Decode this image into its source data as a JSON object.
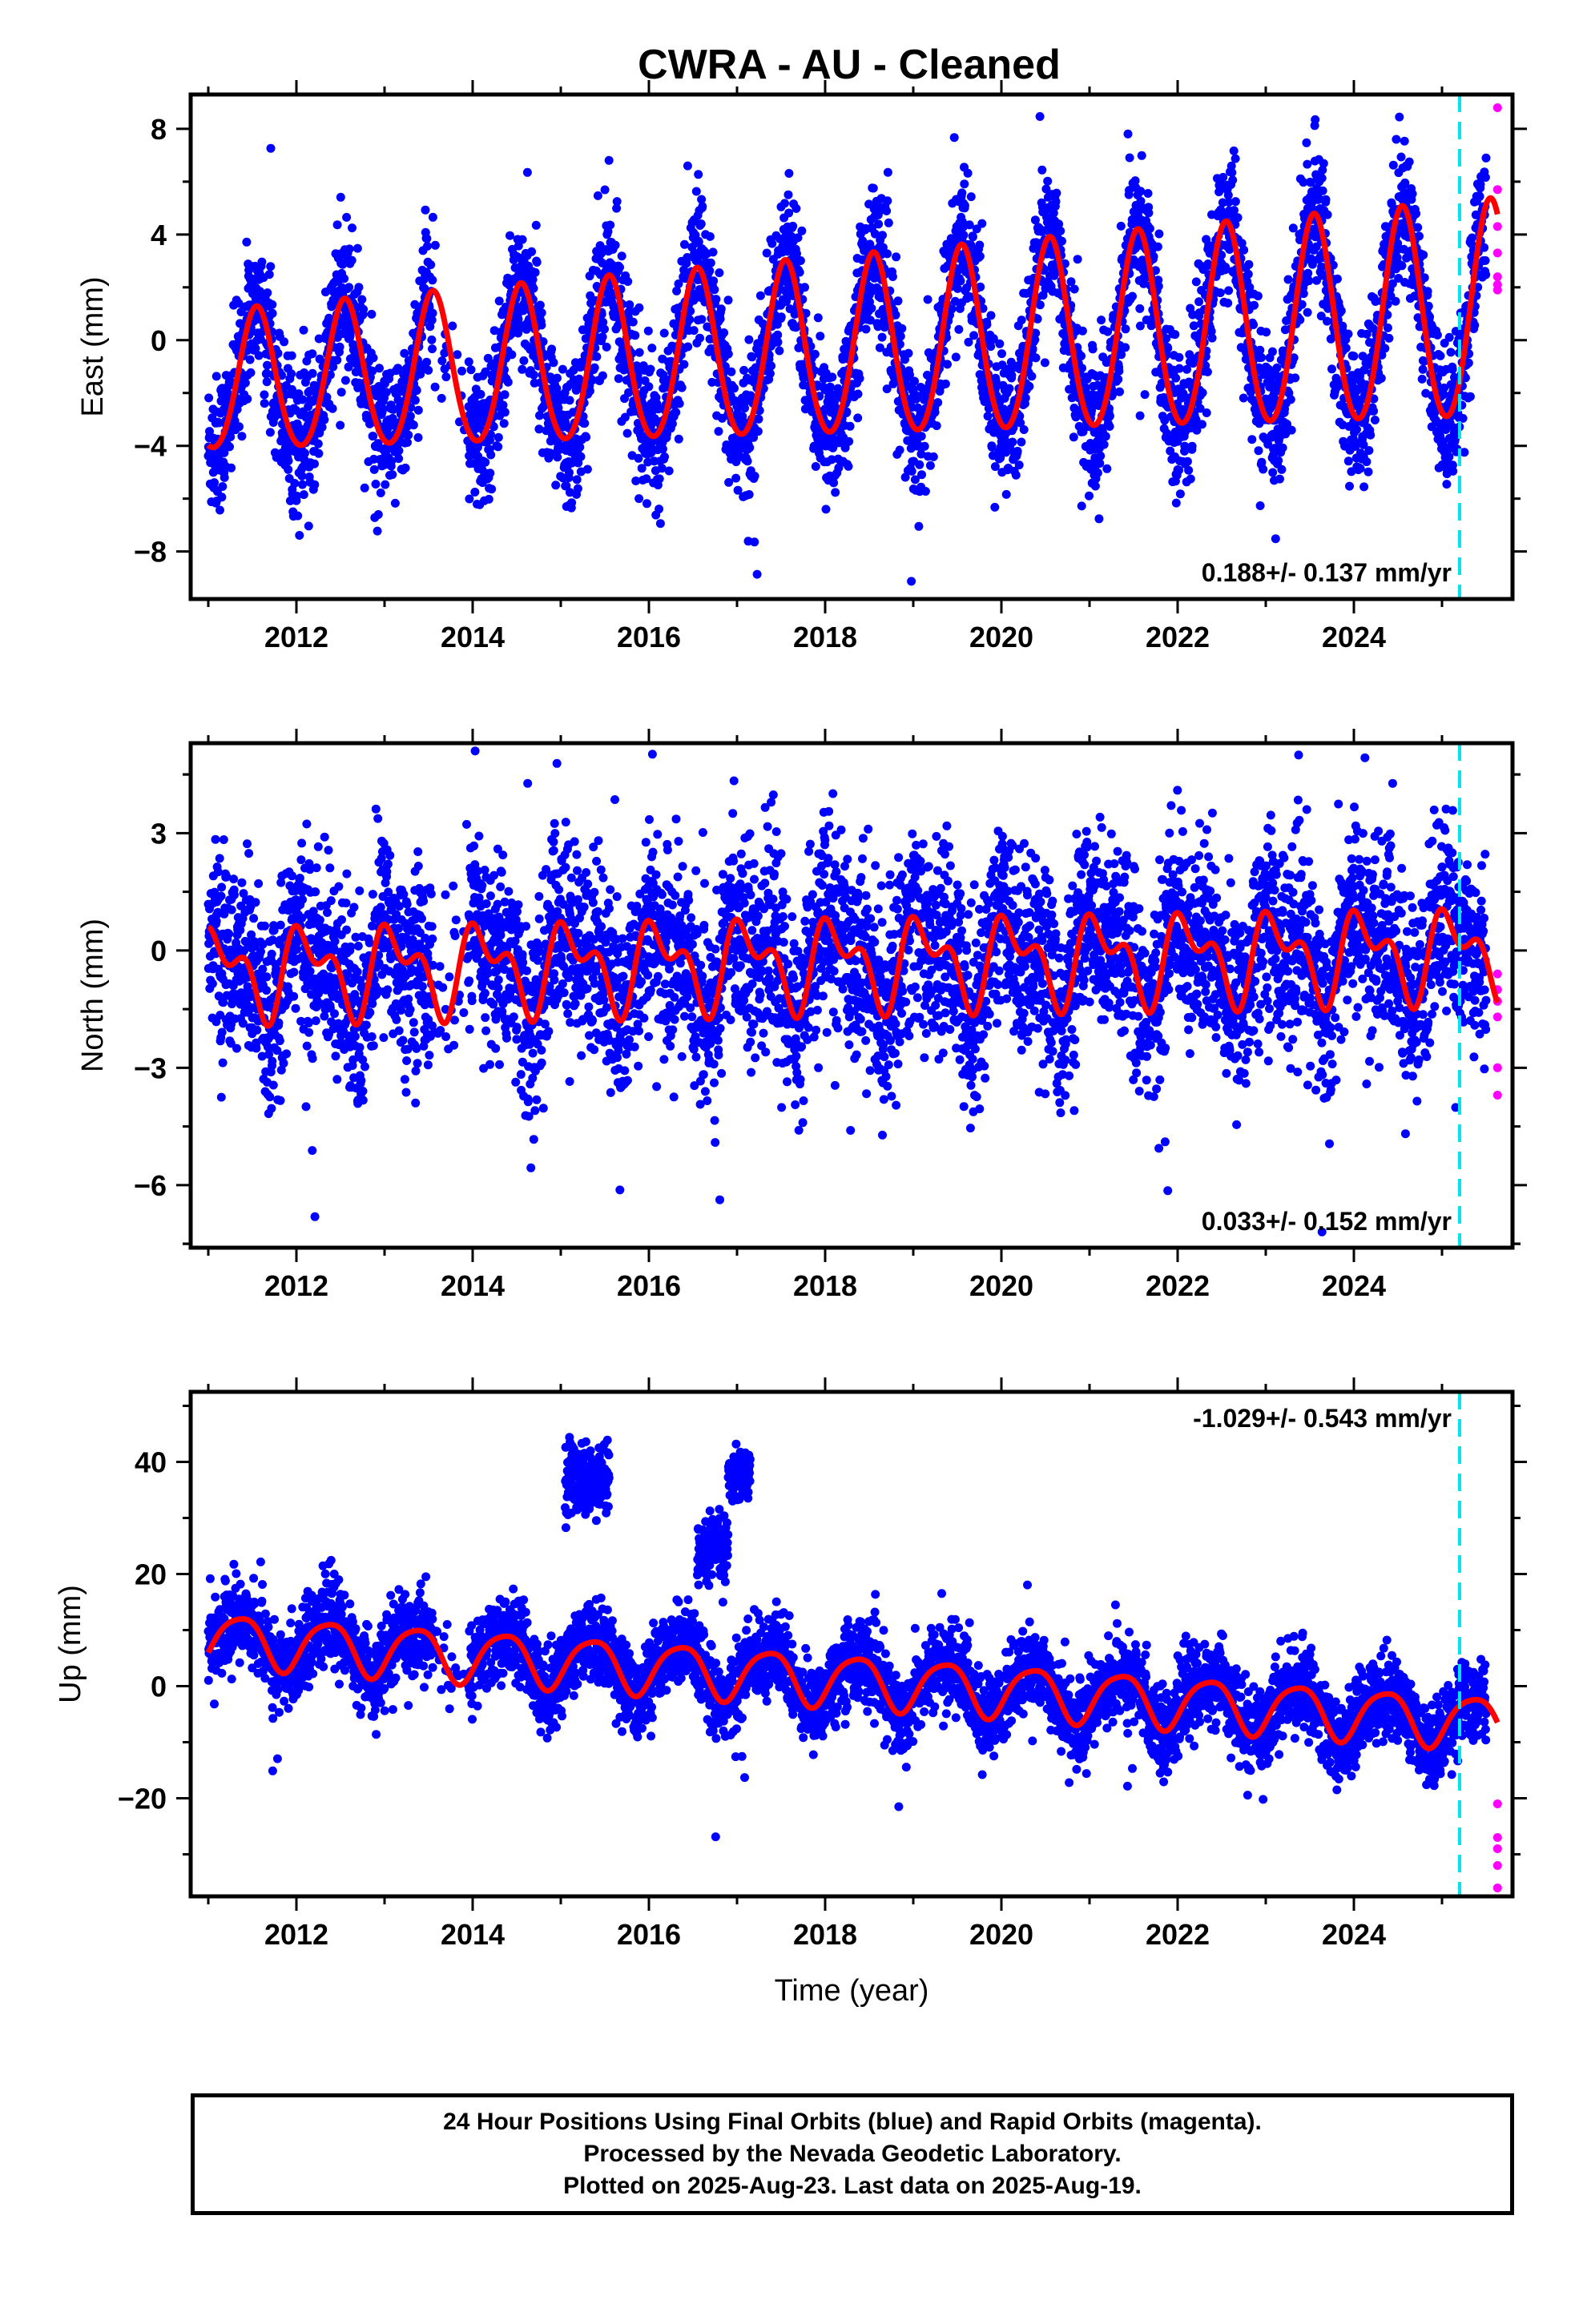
{
  "chart_data": [
    {
      "type": "scatter",
      "title": "CWRA  - AU - Cleaned",
      "ylabel": "East (mm)",
      "xlabel": "",
      "xlim": [
        2010.8,
        2025.8
      ],
      "ylim": [
        -9.8,
        9.3
      ],
      "x_ticks": [
        2012,
        2014,
        2016,
        2018,
        2020,
        2022,
        2024
      ],
      "y_ticks": [
        -8,
        -4,
        0,
        4,
        8
      ],
      "y_tick_labels": [
        "−8",
        "−4",
        "0",
        "4",
        "8"
      ],
      "rate_label": "0.188+/- 0.137 mm/yr",
      "rate_position": "bottom-right",
      "equipment_change_year": 2025.2,
      "data_range": [
        2011.0,
        2025.63
      ],
      "rapid_start": 2025.5,
      "model": {
        "offset": -0.4,
        "trend": 0.188,
        "ref_year": 2018,
        "annual": 2.6,
        "annual_growth": 0.04,
        "phase": 4.4,
        "semi": 0.25,
        "semi_phase": 1.0
      },
      "scatter_noise": 1.3,
      "series": [
        {
          "name": "Final Orbits",
          "color": "#0000ff",
          "kind": "points"
        },
        {
          "name": "Rapid Orbits",
          "color": "#ff00ff",
          "kind": "points",
          "x": [
            2025.63,
            2025.63,
            2025.63,
            2025.63,
            2025.63,
            2025.63,
            2025.63
          ],
          "y": [
            8.8,
            5.7,
            4.3,
            3.3,
            2.4,
            2.1,
            1.9
          ]
        },
        {
          "name": "Model",
          "color": "#ff0000",
          "kind": "line"
        }
      ]
    },
    {
      "type": "scatter",
      "title": "",
      "ylabel": "North (mm)",
      "xlabel": "",
      "xlim": [
        2010.8,
        2025.8
      ],
      "ylim": [
        -7.6,
        5.3
      ],
      "x_ticks": [
        2012,
        2014,
        2016,
        2018,
        2020,
        2022,
        2024
      ],
      "y_ticks": [
        -6,
        -3,
        0,
        3
      ],
      "y_tick_labels": [
        "−6",
        "−3",
        "0",
        "3"
      ],
      "rate_label": "0.033+/- 0.152 mm/yr",
      "rate_position": "bottom-right",
      "equipment_change_year": 2025.2,
      "data_range": [
        2011.0,
        2025.63
      ],
      "rapid_start": 2025.5,
      "model": {
        "offset": -0.3,
        "trend": 0.033,
        "ref_year": 2018,
        "annual": 0.9,
        "annual_growth": 0.0,
        "phase": 0.8,
        "semi": 0.6,
        "semi_phase": 2.2
      },
      "scatter_noise": 1.25,
      "series": [
        {
          "name": "Final Orbits",
          "color": "#0000ff",
          "kind": "points"
        },
        {
          "name": "Rapid Orbits",
          "color": "#ff00ff",
          "kind": "points",
          "x": [
            2025.63,
            2025.63,
            2025.63,
            2025.63,
            2025.63,
            2025.63
          ],
          "y": [
            -0.6,
            -1.0,
            -1.3,
            -1.7,
            -3.0,
            -3.7
          ]
        },
        {
          "name": "Model",
          "color": "#ff0000",
          "kind": "line"
        }
      ]
    },
    {
      "type": "scatter",
      "title": "",
      "ylabel": "Up (mm)",
      "xlabel": "Time (year)",
      "xlim": [
        2010.8,
        2025.8
      ],
      "ylim": [
        -37.5,
        52.5
      ],
      "x_ticks": [
        2012,
        2014,
        2016,
        2018,
        2020,
        2022,
        2024
      ],
      "y_ticks": [
        -20,
        0,
        20,
        40
      ],
      "y_tick_labels": [
        "−20",
        "0",
        "20",
        "40"
      ],
      "rate_label": "-1.029+/- 0.543 mm/yr",
      "rate_position": "top-right",
      "equipment_change_year": 2025.2,
      "data_range": [
        2011.0,
        2025.63
      ],
      "rapid_start": 2025.5,
      "model": {
        "offset": 8.5,
        "trend": -1.029,
        "ref_year": 2011,
        "annual": 4.6,
        "annual_growth": 0.0,
        "phase": 5.6,
        "semi": 0.8,
        "semi_phase": 0.5
      },
      "scatter_noise": 3.6,
      "outlier_clusters": [
        {
          "x_start": 2015.05,
          "x_end": 2015.55,
          "y_center": 37,
          "spread": 6
        },
        {
          "x_start": 2016.55,
          "x_end": 2016.9,
          "y_center": 24,
          "spread": 6
        },
        {
          "x_start": 2016.9,
          "x_end": 2017.15,
          "y_center": 38,
          "spread": 4.5
        }
      ],
      "series": [
        {
          "name": "Final Orbits",
          "color": "#0000ff",
          "kind": "points"
        },
        {
          "name": "Rapid Orbits",
          "color": "#ff00ff",
          "kind": "points",
          "x": [
            2025.63,
            2025.63,
            2025.63,
            2025.63,
            2025.63
          ],
          "y": [
            -21,
            -27,
            -29,
            -32,
            -36
          ]
        },
        {
          "name": "Model",
          "color": "#ff0000",
          "kind": "line"
        }
      ]
    }
  ],
  "caption": {
    "line1": "24 Hour Positions Using Final Orbits (blue) and Rapid Orbits (magenta).",
    "line2": "Processed by the Nevada Geodetic Laboratory.",
    "line3": "Plotted on 2025-Aug-23. Last data on 2025-Aug-19."
  },
  "colors": {
    "final_orbits": "#0000ff",
    "rapid_orbits": "#ff00ff",
    "model": "#ff0000",
    "equipment_change": "#00e5ee"
  }
}
